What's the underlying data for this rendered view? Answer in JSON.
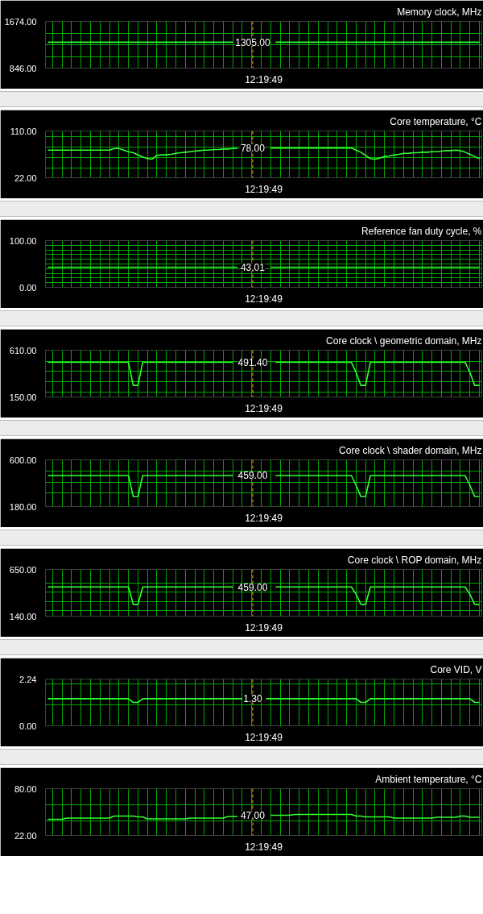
{
  "chart_data": [
    {
      "type": "line",
      "title": "Memory clock, MHz",
      "tick_labels": "y",
      "grid": true,
      "ylim": [
        846,
        1674
      ],
      "yticks": [
        {
          "value": 846,
          "label": "846.00"
        },
        {
          "value": 1053,
          "label": null
        },
        {
          "value": 1260,
          "label": null
        },
        {
          "value": 1467,
          "label": null
        },
        {
          "value": 1674,
          "label": "1674.00"
        }
      ],
      "categories": [
        null,
        null,
        null,
        null,
        null,
        null,
        null,
        null,
        null,
        null,
        null,
        null,
        null,
        null,
        null,
        null,
        null,
        null,
        null,
        null,
        null,
        null,
        null,
        null,
        null,
        null,
        null,
        null,
        null,
        null,
        null,
        null,
        null,
        null,
        null,
        null,
        null,
        null,
        null,
        null,
        null,
        null,
        null,
        null,
        null,
        null,
        null,
        null,
        null,
        null,
        null,
        null,
        null,
        null,
        null,
        null,
        null,
        null,
        null,
        null,
        null,
        null,
        null,
        null,
        null,
        null,
        null,
        null,
        null,
        null,
        null,
        null,
        null,
        null,
        null,
        null,
        null,
        null,
        null,
        null,
        null,
        null,
        null,
        null,
        null,
        null,
        null,
        null,
        null,
        null,
        null,
        null
      ],
      "series": [
        {
          "color": "#33ff33",
          "values": [
            1305,
            1305,
            1305,
            1305,
            1305,
            1305,
            1305,
            1305,
            1305,
            1305,
            1305,
            1305,
            1305,
            1305,
            1305,
            1305,
            1305,
            1305,
            1305,
            1305,
            1305,
            1305,
            1305,
            1305,
            1305,
            1305,
            1305,
            1305,
            1305,
            1305,
            1305,
            1305,
            1305,
            1305,
            1305,
            1305,
            1305,
            1305,
            1305,
            1305,
            null,
            null,
            null,
            null,
            null,
            null,
            null,
            null,
            1305,
            1305,
            1305,
            1305,
            1305,
            1305,
            1305,
            1305,
            1305,
            1305,
            1305,
            1305,
            1305,
            1305,
            1305,
            1305,
            1305,
            1305,
            1305,
            1305,
            1305,
            1305,
            1305,
            1305,
            1305,
            1305,
            1305,
            1305,
            1305,
            1305,
            1305,
            1305,
            1305,
            1305,
            1305,
            1305,
            1305,
            1305,
            1305,
            1305,
            1305,
            1305,
            1305,
            1305
          ]
        }
      ],
      "annotations": [
        "1305.00",
        "12:19:49"
      ]
    },
    {
      "type": "line",
      "title": "Core temperature, °C",
      "tick_labels": "y",
      "grid": true,
      "ylim": [
        22,
        110
      ],
      "yticks": [
        {
          "value": 22,
          "label": "22.00"
        },
        {
          "value": 40,
          "label": null
        },
        {
          "value": 60,
          "label": null
        },
        {
          "value": 80,
          "label": null
        },
        {
          "value": 100,
          "label": null
        },
        {
          "value": 110,
          "label": "110.00"
        }
      ],
      "categories": [
        null,
        null,
        null,
        null,
        null,
        null,
        null,
        null,
        null,
        null,
        null,
        null,
        null,
        null,
        null,
        null,
        null,
        null,
        null,
        null,
        null,
        null,
        null,
        null,
        null,
        null,
        null,
        null,
        null,
        null,
        null,
        null,
        null,
        null,
        null,
        null,
        null,
        null,
        null,
        null,
        null,
        null,
        null,
        null,
        null,
        null,
        null,
        null,
        null,
        null,
        null,
        null,
        null,
        null,
        null,
        null,
        null,
        null,
        null,
        null,
        null,
        null,
        null,
        null,
        null,
        null,
        null,
        null,
        null,
        null,
        null,
        null,
        null,
        null,
        null,
        null,
        null,
        null,
        null,
        null,
        null,
        null,
        null,
        null,
        null,
        null,
        null,
        null,
        null,
        null,
        null,
        null
      ],
      "series": [
        {
          "color": "#33ff33",
          "values": [
            74,
            74,
            74,
            74,
            74,
            74,
            74,
            74,
            74,
            74,
            74,
            74,
            74,
            74,
            77,
            77,
            74,
            71,
            69,
            65,
            61,
            58,
            57,
            64,
            65,
            65,
            66,
            68,
            69,
            70,
            71,
            72,
            73,
            74,
            74,
            75,
            75,
            76,
            76,
            77,
            77,
            null,
            null,
            null,
            null,
            null,
            null,
            78,
            78,
            78,
            78,
            78,
            78,
            78,
            78,
            78,
            78,
            78,
            78,
            78,
            78,
            78,
            78,
            78,
            78,
            74,
            70,
            64,
            58,
            57,
            59,
            62,
            63,
            65,
            66,
            68,
            68,
            69,
            69,
            70,
            70,
            71,
            71,
            72,
            73,
            73,
            74,
            73,
            70,
            66,
            62,
            58
          ]
        }
      ],
      "annotations": [
        "78.00",
        "12:19:49"
      ]
    },
    {
      "type": "line",
      "title": "Reference fan duty cycle, %",
      "tick_labels": "y",
      "grid": true,
      "ylim": [
        0,
        100
      ],
      "yticks": [
        {
          "value": 0,
          "label": "0.00"
        },
        {
          "value": 10,
          "label": null
        },
        {
          "value": 20,
          "label": null
        },
        {
          "value": 30,
          "label": null
        },
        {
          "value": 40,
          "label": null
        },
        {
          "value": 50,
          "label": null
        },
        {
          "value": 60,
          "label": null
        },
        {
          "value": 70,
          "label": null
        },
        {
          "value": 80,
          "label": null
        },
        {
          "value": 90,
          "label": null
        },
        {
          "value": 100,
          "label": "100.00"
        }
      ],
      "categories": [
        null,
        null,
        null,
        null,
        null,
        null,
        null,
        null,
        null,
        null,
        null,
        null,
        null,
        null,
        null,
        null,
        null,
        null,
        null,
        null,
        null,
        null,
        null,
        null,
        null,
        null,
        null,
        null,
        null,
        null,
        null,
        null,
        null,
        null,
        null,
        null,
        null,
        null,
        null,
        null,
        null,
        null,
        null,
        null,
        null,
        null,
        null,
        null,
        null,
        null,
        null,
        null,
        null,
        null,
        null,
        null,
        null,
        null,
        null,
        null,
        null,
        null,
        null,
        null,
        null,
        null,
        null,
        null,
        null,
        null,
        null,
        null,
        null,
        null,
        null,
        null,
        null,
        null,
        null,
        null,
        null,
        null,
        null,
        null,
        null,
        null,
        null,
        null,
        null,
        null,
        null,
        null
      ],
      "series": [
        {
          "color": "#33ff33",
          "values": [
            43.01,
            43.01,
            43.01,
            43.01,
            43.01,
            43.01,
            43.01,
            43.01,
            43.01,
            43.01,
            43.01,
            43.01,
            43.01,
            43.01,
            43.01,
            43.01,
            43.01,
            43.01,
            43.01,
            43.01,
            43.01,
            43.01,
            43.01,
            43.01,
            43.01,
            43.01,
            43.01,
            43.01,
            43.01,
            43.01,
            43.01,
            43.01,
            43.01,
            43.01,
            43.01,
            43.01,
            43.01,
            43.01,
            43.01,
            43.01,
            43.01,
            null,
            null,
            null,
            null,
            null,
            null,
            43.01,
            43.01,
            43.01,
            43.01,
            43.01,
            43.01,
            43.01,
            43.01,
            43.01,
            43.01,
            43.01,
            43.01,
            43.01,
            43.01,
            43.01,
            43.01,
            43.01,
            43.01,
            43.01,
            43.01,
            43.01,
            43.01,
            43.01,
            43.01,
            43.01,
            43.01,
            43.01,
            43.01,
            43.01,
            43.01,
            43.01,
            43.01,
            43.01,
            43.01,
            43.01,
            43.01,
            43.01,
            43.01,
            43.01,
            43.01,
            43.01,
            43.01,
            43.01,
            43.01,
            43.01
          ]
        }
      ],
      "annotations": [
        "43.01",
        "12:19:49"
      ]
    },
    {
      "type": "line",
      "title": "Core clock \\ geometric domain, MHz",
      "tick_labels": "y",
      "grid": true,
      "ylim": [
        150,
        610
      ],
      "yticks": [
        {
          "value": 150,
          "label": "150.00"
        },
        {
          "value": 200,
          "label": null
        },
        {
          "value": 300,
          "label": null
        },
        {
          "value": 400,
          "label": null
        },
        {
          "value": 500,
          "label": null
        },
        {
          "value": 610,
          "label": "610.00"
        }
      ],
      "categories": [
        null,
        null,
        null,
        null,
        null,
        null,
        null,
        null,
        null,
        null,
        null,
        null,
        null,
        null,
        null,
        null,
        null,
        null,
        null,
        null,
        null,
        null,
        null,
        null,
        null,
        null,
        null,
        null,
        null,
        null,
        null,
        null,
        null,
        null,
        null,
        null,
        null,
        null,
        null,
        null,
        null,
        null,
        null,
        null,
        null,
        null,
        null,
        null,
        null,
        null,
        null,
        null,
        null,
        null,
        null,
        null,
        null,
        null,
        null,
        null,
        null,
        null,
        null,
        null,
        null,
        null,
        null,
        null,
        null,
        null,
        null,
        null,
        null,
        null,
        null,
        null,
        null,
        null,
        null,
        null,
        null,
        null,
        null,
        null,
        null,
        null,
        null,
        null,
        null,
        null,
        null,
        null
      ],
      "series": [
        {
          "color": "#33ff33",
          "values": [
            491.4,
            491.4,
            491.4,
            491.4,
            491.4,
            491.4,
            491.4,
            491.4,
            491.4,
            491.4,
            491.4,
            491.4,
            491.4,
            491.4,
            491.4,
            491.4,
            491.4,
            491.4,
            264,
            264,
            491.4,
            491.4,
            491.4,
            491.4,
            491.4,
            491.4,
            491.4,
            491.4,
            491.4,
            491.4,
            491.4,
            491.4,
            491.4,
            491.4,
            491.4,
            491.4,
            491.4,
            491.4,
            491.4,
            491.4,
            null,
            null,
            null,
            null,
            null,
            null,
            null,
            null,
            491.4,
            491.4,
            491.4,
            491.4,
            491.4,
            491.4,
            491.4,
            491.4,
            491.4,
            491.4,
            491.4,
            491.4,
            491.4,
            491.4,
            491.4,
            491.4,
            491.4,
            390,
            264,
            264,
            491.4,
            491.4,
            491.4,
            491.4,
            491.4,
            491.4,
            491.4,
            491.4,
            491.4,
            491.4,
            491.4,
            491.4,
            491.4,
            491.4,
            491.4,
            491.4,
            491.4,
            491.4,
            491.4,
            491.4,
            491.4,
            390,
            264,
            264
          ]
        }
      ],
      "annotations": [
        "491.40",
        "12:19:49"
      ]
    },
    {
      "type": "line",
      "title": "Core clock \\ shader domain, MHz",
      "tick_labels": "y",
      "grid": true,
      "ylim": [
        180,
        600
      ],
      "yticks": [
        {
          "value": 180,
          "label": "180.00"
        },
        {
          "value": 300,
          "label": null
        },
        {
          "value": 400,
          "label": null
        },
        {
          "value": 500,
          "label": null
        },
        {
          "value": 600,
          "label": "600.00"
        }
      ],
      "categories": [
        null,
        null,
        null,
        null,
        null,
        null,
        null,
        null,
        null,
        null,
        null,
        null,
        null,
        null,
        null,
        null,
        null,
        null,
        null,
        null,
        null,
        null,
        null,
        null,
        null,
        null,
        null,
        null,
        null,
        null,
        null,
        null,
        null,
        null,
        null,
        null,
        null,
        null,
        null,
        null,
        null,
        null,
        null,
        null,
        null,
        null,
        null,
        null,
        null,
        null,
        null,
        null,
        null,
        null,
        null,
        null,
        null,
        null,
        null,
        null,
        null,
        null,
        null,
        null,
        null,
        null,
        null,
        null,
        null,
        null,
        null,
        null,
        null,
        null,
        null,
        null,
        null,
        null,
        null,
        null,
        null,
        null,
        null,
        null,
        null,
        null,
        null,
        null,
        null,
        null,
        null,
        null
      ],
      "series": [
        {
          "color": "#33ff33",
          "values": [
            459,
            459,
            459,
            459,
            459,
            459,
            459,
            459,
            459,
            459,
            459,
            459,
            459,
            459,
            459,
            459,
            459,
            459,
            270,
            270,
            459,
            459,
            459,
            459,
            459,
            459,
            459,
            459,
            459,
            459,
            459,
            459,
            459,
            459,
            459,
            459,
            459,
            459,
            459,
            459,
            null,
            null,
            null,
            null,
            null,
            null,
            null,
            null,
            459,
            459,
            459,
            459,
            459,
            459,
            459,
            459,
            459,
            459,
            459,
            459,
            459,
            459,
            459,
            459,
            459,
            370,
            270,
            270,
            459,
            459,
            459,
            459,
            459,
            459,
            459,
            459,
            459,
            459,
            459,
            459,
            459,
            459,
            459,
            459,
            459,
            459,
            459,
            459,
            459,
            370,
            270,
            270
          ]
        }
      ],
      "annotations": [
        "459.00",
        "12:19:49"
      ]
    },
    {
      "type": "line",
      "title": "Core clock \\ ROP domain, MHz",
      "tick_labels": "y",
      "grid": true,
      "ylim": [
        140,
        650
      ],
      "yticks": [
        {
          "value": 140,
          "label": "140.00"
        },
        {
          "value": 200,
          "label": null
        },
        {
          "value": 300,
          "label": null
        },
        {
          "value": 400,
          "label": null
        },
        {
          "value": 500,
          "label": null
        },
        {
          "value": 650,
          "label": "650.00"
        }
      ],
      "categories": [
        null,
        null,
        null,
        null,
        null,
        null,
        null,
        null,
        null,
        null,
        null,
        null,
        null,
        null,
        null,
        null,
        null,
        null,
        null,
        null,
        null,
        null,
        null,
        null,
        null,
        null,
        null,
        null,
        null,
        null,
        null,
        null,
        null,
        null,
        null,
        null,
        null,
        null,
        null,
        null,
        null,
        null,
        null,
        null,
        null,
        null,
        null,
        null,
        null,
        null,
        null,
        null,
        null,
        null,
        null,
        null,
        null,
        null,
        null,
        null,
        null,
        null,
        null,
        null,
        null,
        null,
        null,
        null,
        null,
        null,
        null,
        null,
        null,
        null,
        null,
        null,
        null,
        null,
        null,
        null,
        null,
        null,
        null,
        null,
        null,
        null,
        null,
        null,
        null,
        null,
        null,
        null
      ],
      "series": [
        {
          "color": "#33ff33",
          "values": [
            459,
            459,
            459,
            459,
            459,
            459,
            459,
            459,
            459,
            459,
            459,
            459,
            459,
            459,
            459,
            459,
            459,
            459,
            269,
            269,
            459,
            459,
            459,
            459,
            459,
            459,
            459,
            459,
            459,
            459,
            459,
            459,
            459,
            459,
            459,
            459,
            459,
            459,
            459,
            459,
            null,
            null,
            null,
            null,
            null,
            null,
            null,
            null,
            459,
            459,
            459,
            459,
            459,
            459,
            459,
            459,
            459,
            459,
            459,
            459,
            459,
            459,
            459,
            459,
            459,
            378,
            269,
            269,
            459,
            459,
            459,
            459,
            459,
            459,
            459,
            459,
            459,
            459,
            459,
            459,
            459,
            459,
            459,
            459,
            459,
            459,
            459,
            459,
            459,
            378,
            269,
            269
          ]
        }
      ],
      "annotations": [
        "459.00",
        "12:19:49"
      ]
    },
    {
      "type": "line",
      "title": "Core VID, V",
      "tick_labels": "y",
      "grid": true,
      "ylim": [
        0,
        2.24
      ],
      "yticks": [
        {
          "value": 0,
          "label": "0.00"
        },
        {
          "value": 1,
          "label": null
        },
        {
          "value": 2,
          "label": null
        },
        {
          "value": 2.24,
          "label": "2.24"
        }
      ],
      "categories": [
        null,
        null,
        null,
        null,
        null,
        null,
        null,
        null,
        null,
        null,
        null,
        null,
        null,
        null,
        null,
        null,
        null,
        null,
        null,
        null,
        null,
        null,
        null,
        null,
        null,
        null,
        null,
        null,
        null,
        null,
        null,
        null,
        null,
        null,
        null,
        null,
        null,
        null,
        null,
        null,
        null,
        null,
        null,
        null,
        null,
        null,
        null,
        null,
        null,
        null,
        null,
        null,
        null,
        null,
        null,
        null,
        null,
        null,
        null,
        null,
        null,
        null,
        null,
        null,
        null,
        null,
        null,
        null,
        null,
        null,
        null,
        null,
        null,
        null,
        null,
        null,
        null,
        null,
        null,
        null,
        null,
        null,
        null,
        null,
        null,
        null,
        null,
        null,
        null,
        null,
        null,
        null
      ],
      "series": [
        {
          "color": "#33ff33",
          "values": [
            1.3,
            1.3,
            1.3,
            1.3,
            1.3,
            1.3,
            1.3,
            1.3,
            1.3,
            1.3,
            1.3,
            1.3,
            1.3,
            1.3,
            1.3,
            1.3,
            1.3,
            1.3,
            1.12,
            1.12,
            1.3,
            1.3,
            1.3,
            1.3,
            1.3,
            1.3,
            1.3,
            1.3,
            1.3,
            1.3,
            1.3,
            1.3,
            1.3,
            1.3,
            1.3,
            1.3,
            1.3,
            1.3,
            1.3,
            1.3,
            1.3,
            1.3,
            null,
            null,
            null,
            null,
            1.3,
            1.3,
            1.3,
            1.3,
            1.3,
            1.3,
            1.3,
            1.3,
            1.3,
            1.3,
            1.3,
            1.3,
            1.3,
            1.3,
            1.3,
            1.3,
            1.3,
            1.3,
            1.3,
            1.3,
            1.12,
            1.12,
            1.3,
            1.3,
            1.3,
            1.3,
            1.3,
            1.3,
            1.3,
            1.3,
            1.3,
            1.3,
            1.3,
            1.3,
            1.3,
            1.3,
            1.3,
            1.3,
            1.3,
            1.3,
            1.3,
            1.3,
            1.3,
            1.3,
            1.12,
            1.12
          ]
        }
      ],
      "annotations": [
        "1.30",
        "12:19:49"
      ]
    },
    {
      "type": "line",
      "title": "Ambient temperature, °C",
      "tick_labels": "y",
      "grid": true,
      "ylim": [
        22,
        80
      ],
      "yticks": [
        {
          "value": 22,
          "label": "22.00"
        },
        {
          "value": 40,
          "label": null
        },
        {
          "value": 60,
          "label": null
        },
        {
          "value": 80,
          "label": "80.00"
        }
      ],
      "categories": [
        null,
        null,
        null,
        null,
        null,
        null,
        null,
        null,
        null,
        null,
        null,
        null,
        null,
        null,
        null,
        null,
        null,
        null,
        null,
        null,
        null,
        null,
        null,
        null,
        null,
        null,
        null,
        null,
        null,
        null,
        null,
        null,
        null,
        null,
        null,
        null,
        null,
        null,
        null,
        null,
        null,
        null,
        null,
        null,
        null,
        null,
        null,
        null,
        null,
        null,
        null,
        null,
        null,
        null,
        null,
        null,
        null,
        null,
        null,
        null,
        null,
        null,
        null,
        null,
        null,
        null,
        null,
        null,
        null,
        null,
        null,
        null,
        null,
        null,
        null,
        null,
        null,
        null,
        null,
        null,
        null,
        null,
        null,
        null,
        null,
        null,
        null,
        null,
        null,
        null,
        null,
        null
      ],
      "series": [
        {
          "color": "#33ff33",
          "values": [
            42,
            42,
            42,
            42,
            43.5,
            43.5,
            43.5,
            43.5,
            43.5,
            43.5,
            43.5,
            43.5,
            43.5,
            43.5,
            46,
            46,
            46,
            46,
            46,
            45,
            45,
            42.5,
            42.5,
            42.5,
            42.5,
            42.5,
            42.5,
            42.5,
            42.5,
            42.5,
            43.5,
            43.5,
            43.5,
            43.5,
            43.5,
            43.5,
            43.5,
            43.5,
            45.5,
            45.5,
            45.5,
            null,
            null,
            null,
            null,
            null,
            null,
            47,
            47,
            47,
            47,
            47,
            48,
            48,
            48,
            48,
            48,
            48,
            48,
            48,
            48,
            48,
            48,
            48,
            48,
            46,
            46,
            45,
            45,
            45,
            45,
            45,
            45,
            43.5,
            43.5,
            43.5,
            43.5,
            43.5,
            43.5,
            43.5,
            43.5,
            43.5,
            44.5,
            44.5,
            44.5,
            44.5,
            44.5,
            46,
            46,
            44.5,
            44.5,
            44.5
          ]
        }
      ],
      "annotations": [
        "47.00",
        "12:19:49"
      ]
    }
  ]
}
